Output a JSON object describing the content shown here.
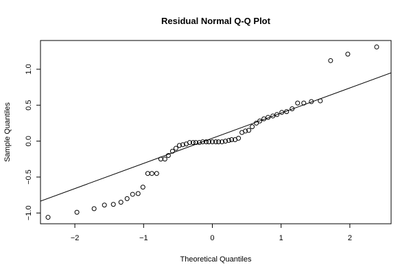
{
  "chart_data": {
    "type": "scatter",
    "title": "Residual Normal Q-Q Plot",
    "xlabel": "Theoretical Quantiles",
    "ylabel": "Sample Quantiles",
    "xlim": [
      -2.5,
      2.6
    ],
    "ylim": [
      -1.15,
      1.4
    ],
    "x_ticks": [
      -2,
      -1,
      0,
      1,
      2
    ],
    "x_tick_labels": [
      "−2",
      "−1",
      "0",
      "1",
      "2"
    ],
    "y_ticks": [
      -1.0,
      -0.5,
      0.0,
      0.5,
      1.0
    ],
    "y_tick_labels": [
      "−1.0",
      "−0.5",
      "0.0",
      "0.5",
      "1.0"
    ],
    "grid": false,
    "reference_line": {
      "slope": 0.35,
      "intercept": 0.04
    },
    "points": [
      [
        -2.39,
        -1.06
      ],
      [
        -1.97,
        -0.99
      ],
      [
        -1.72,
        -0.94
      ],
      [
        -1.57,
        -0.89
      ],
      [
        -1.44,
        -0.88
      ],
      [
        -1.33,
        -0.85
      ],
      [
        -1.24,
        -0.8
      ],
      [
        -1.16,
        -0.74
      ],
      [
        -1.08,
        -0.73
      ],
      [
        -1.01,
        -0.64
      ],
      [
        -0.94,
        -0.45
      ],
      [
        -0.88,
        -0.45
      ],
      [
        -0.81,
        -0.45
      ],
      [
        -0.75,
        -0.25
      ],
      [
        -0.69,
        -0.25
      ],
      [
        -0.64,
        -0.2
      ],
      [
        -0.58,
        -0.14
      ],
      [
        -0.53,
        -0.1
      ],
      [
        -0.48,
        -0.06
      ],
      [
        -0.43,
        -0.05
      ],
      [
        -0.38,
        -0.04
      ],
      [
        -0.33,
        -0.02
      ],
      [
        -0.28,
        -0.02
      ],
      [
        -0.24,
        -0.02
      ],
      [
        -0.19,
        -0.02
      ],
      [
        -0.14,
        -0.01
      ],
      [
        -0.09,
        -0.01
      ],
      [
        -0.05,
        -0.01
      ],
      [
        0.0,
        -0.01
      ],
      [
        0.05,
        -0.01
      ],
      [
        0.09,
        -0.01
      ],
      [
        0.14,
        -0.01
      ],
      [
        0.19,
        0.0
      ],
      [
        0.24,
        0.01
      ],
      [
        0.28,
        0.02
      ],
      [
        0.33,
        0.02
      ],
      [
        0.38,
        0.04
      ],
      [
        0.43,
        0.12
      ],
      [
        0.48,
        0.14
      ],
      [
        0.53,
        0.15
      ],
      [
        0.58,
        0.2
      ],
      [
        0.64,
        0.25
      ],
      [
        0.69,
        0.28
      ],
      [
        0.75,
        0.31
      ],
      [
        0.81,
        0.33
      ],
      [
        0.88,
        0.35
      ],
      [
        0.94,
        0.37
      ],
      [
        1.01,
        0.4
      ],
      [
        1.08,
        0.41
      ],
      [
        1.16,
        0.45
      ],
      [
        1.24,
        0.53
      ],
      [
        1.33,
        0.53
      ],
      [
        1.44,
        0.55
      ],
      [
        1.57,
        0.56
      ],
      [
        1.72,
        1.12
      ],
      [
        1.97,
        1.21
      ],
      [
        2.39,
        1.31
      ]
    ]
  }
}
